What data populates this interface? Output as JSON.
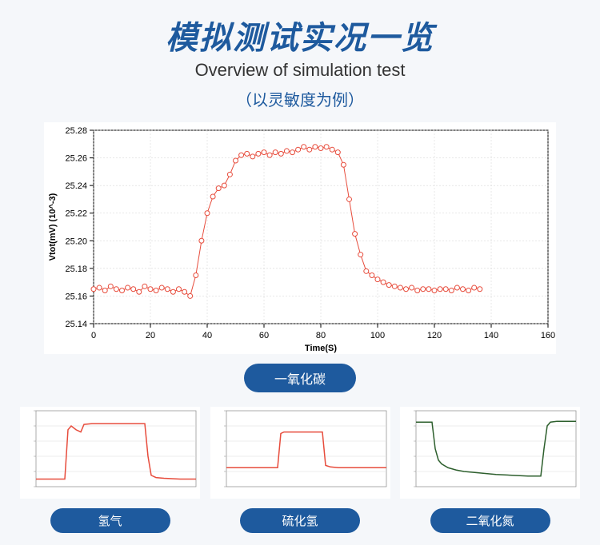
{
  "header": {
    "title_main": "模拟测试实况一览",
    "title_sub": "Overview of simulation test",
    "title_note": "（以灵敏度为例）"
  },
  "main_chart": {
    "type": "scatter-line",
    "label": "一氧化碳",
    "xlabel": "Time(S)",
    "ylabel": "Vtot(mV) (10^-3)",
    "label_fontsize": 11,
    "xlim": [
      0,
      160
    ],
    "ylim": [
      25.14,
      25.28
    ],
    "xtick_step": 20,
    "ytick_step": 0.02,
    "background_color": "#ffffff",
    "grid_color": "#d0d0d0",
    "axis_color": "#000000",
    "series_color": "#e74c3c",
    "marker": "circle-open",
    "marker_size": 3,
    "line_width": 1,
    "data": [
      [
        0,
        25.165
      ],
      [
        2,
        25.166
      ],
      [
        4,
        25.164
      ],
      [
        6,
        25.167
      ],
      [
        8,
        25.165
      ],
      [
        10,
        25.164
      ],
      [
        12,
        25.166
      ],
      [
        14,
        25.165
      ],
      [
        16,
        25.163
      ],
      [
        18,
        25.167
      ],
      [
        20,
        25.165
      ],
      [
        22,
        25.164
      ],
      [
        24,
        25.166
      ],
      [
        26,
        25.165
      ],
      [
        28,
        25.163
      ],
      [
        30,
        25.165
      ],
      [
        32,
        25.163
      ],
      [
        34,
        25.16
      ],
      [
        36,
        25.175
      ],
      [
        38,
        25.2
      ],
      [
        40,
        25.22
      ],
      [
        42,
        25.232
      ],
      [
        44,
        25.238
      ],
      [
        46,
        25.24
      ],
      [
        48,
        25.248
      ],
      [
        50,
        25.258
      ],
      [
        52,
        25.262
      ],
      [
        54,
        25.263
      ],
      [
        56,
        25.261
      ],
      [
        58,
        25.263
      ],
      [
        60,
        25.264
      ],
      [
        62,
        25.262
      ],
      [
        64,
        25.264
      ],
      [
        66,
        25.263
      ],
      [
        68,
        25.265
      ],
      [
        70,
        25.264
      ],
      [
        72,
        25.266
      ],
      [
        74,
        25.268
      ],
      [
        76,
        25.266
      ],
      [
        78,
        25.268
      ],
      [
        80,
        25.267
      ],
      [
        82,
        25.268
      ],
      [
        84,
        25.266
      ],
      [
        86,
        25.264
      ],
      [
        88,
        25.255
      ],
      [
        90,
        25.23
      ],
      [
        92,
        25.205
      ],
      [
        94,
        25.19
      ],
      [
        96,
        25.178
      ],
      [
        98,
        25.175
      ],
      [
        100,
        25.172
      ],
      [
        102,
        25.17
      ],
      [
        104,
        25.168
      ],
      [
        106,
        25.167
      ],
      [
        108,
        25.166
      ],
      [
        110,
        25.165
      ],
      [
        112,
        25.166
      ],
      [
        114,
        25.164
      ],
      [
        116,
        25.165
      ],
      [
        118,
        25.165
      ],
      [
        120,
        25.164
      ],
      [
        122,
        25.165
      ],
      [
        124,
        25.165
      ],
      [
        126,
        25.164
      ],
      [
        128,
        25.166
      ],
      [
        130,
        25.165
      ],
      [
        132,
        25.164
      ],
      [
        134,
        25.166
      ],
      [
        136,
        25.165
      ]
    ]
  },
  "small_charts": [
    {
      "label": "氢气",
      "type": "line",
      "series_color": "#e74c3c",
      "background_color": "#ffffff",
      "line_width": 1.5,
      "xlim": [
        0,
        100
      ],
      "ylim": [
        0,
        10
      ],
      "data": [
        [
          0,
          1.0
        ],
        [
          8,
          1.0
        ],
        [
          15,
          1.0
        ],
        [
          18,
          1.0
        ],
        [
          20,
          7.5
        ],
        [
          22,
          8.0
        ],
        [
          25,
          7.5
        ],
        [
          28,
          7.2
        ],
        [
          30,
          8.2
        ],
        [
          35,
          8.3
        ],
        [
          40,
          8.3
        ],
        [
          50,
          8.3
        ],
        [
          60,
          8.3
        ],
        [
          68,
          8.3
        ],
        [
          70,
          4.0
        ],
        [
          72,
          1.5
        ],
        [
          75,
          1.2
        ],
        [
          80,
          1.1
        ],
        [
          90,
          1.0
        ],
        [
          100,
          1.0
        ]
      ]
    },
    {
      "label": "硫化氢",
      "type": "line",
      "series_color": "#e74c3c",
      "background_color": "#ffffff",
      "line_width": 1.5,
      "xlim": [
        0,
        100
      ],
      "ylim": [
        0,
        10
      ],
      "data": [
        [
          0,
          2.5
        ],
        [
          10,
          2.5
        ],
        [
          20,
          2.5
        ],
        [
          30,
          2.5
        ],
        [
          32,
          2.5
        ],
        [
          34,
          7.0
        ],
        [
          36,
          7.2
        ],
        [
          40,
          7.2
        ],
        [
          50,
          7.2
        ],
        [
          58,
          7.2
        ],
        [
          60,
          7.2
        ],
        [
          62,
          2.8
        ],
        [
          65,
          2.6
        ],
        [
          70,
          2.5
        ],
        [
          80,
          2.5
        ],
        [
          90,
          2.5
        ],
        [
          100,
          2.5
        ]
      ]
    },
    {
      "label": "二氧化氮",
      "type": "line",
      "series_color": "#2d5f2d",
      "background_color": "#ffffff",
      "line_width": 1.5,
      "xlim": [
        0,
        100
      ],
      "ylim": [
        0,
        10
      ],
      "data": [
        [
          0,
          8.5
        ],
        [
          5,
          8.5
        ],
        [
          8,
          8.5
        ],
        [
          10,
          8.5
        ],
        [
          12,
          5.0
        ],
        [
          14,
          3.5
        ],
        [
          16,
          3.0
        ],
        [
          20,
          2.5
        ],
        [
          25,
          2.2
        ],
        [
          30,
          2.0
        ],
        [
          40,
          1.8
        ],
        [
          50,
          1.6
        ],
        [
          60,
          1.5
        ],
        [
          70,
          1.4
        ],
        [
          75,
          1.4
        ],
        [
          78,
          1.4
        ],
        [
          80,
          5.0
        ],
        [
          82,
          8.0
        ],
        [
          84,
          8.5
        ],
        [
          88,
          8.6
        ],
        [
          95,
          8.6
        ],
        [
          100,
          8.6
        ]
      ]
    }
  ],
  "colors": {
    "pill_bg": "#1e5a9e",
    "pill_text": "#ffffff",
    "page_bg": "#f5f7fa"
  }
}
